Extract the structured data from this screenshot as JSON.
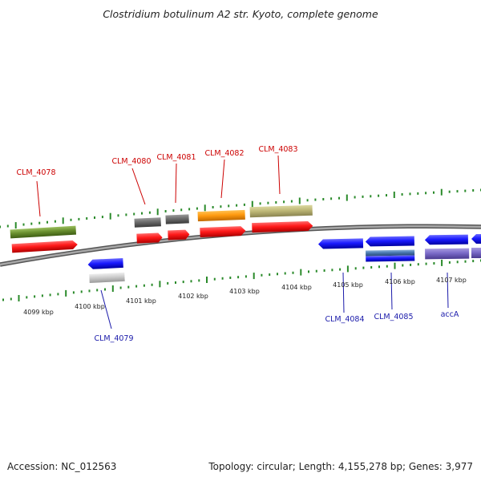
{
  "title": "Clostridium botulinum A2 str. Kyoto, complete genome",
  "footer": {
    "accession": "Accession: NC_012563",
    "summary": "Topology: circular; Length: 4,155,278 bp; Genes: 3,977"
  },
  "colors": {
    "forward_label": "#cc0000",
    "reverse_label": "#1a1aaa",
    "tick": "#2a8a2a",
    "backbone": "#8a8a8a"
  },
  "scale": {
    "tick_labels": [
      "4099 kbp",
      "4100 kbp",
      "4101 kbp",
      "4102 kbp",
      "4103 kbp",
      "4104 kbp",
      "4105 kbp",
      "4106 kbp",
      "4107 kbp"
    ]
  },
  "genes": {
    "forward_labels": [
      "CLM_4078",
      "CLM_4080",
      "CLM_4081",
      "CLM_4082",
      "CLM_4083"
    ],
    "reverse_labels": [
      "CLM_4079",
      "CLM_4084",
      "CLM_4085",
      "accA"
    ]
  }
}
